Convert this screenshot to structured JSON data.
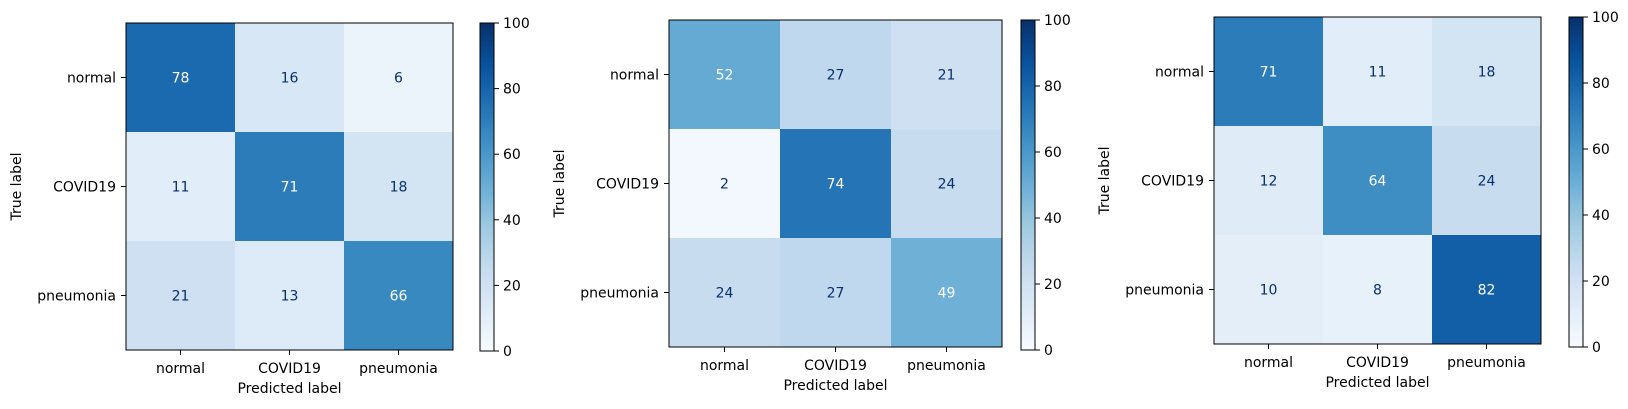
{
  "chart_data": [
    {
      "type": "heatmap",
      "row_categories": [
        "normal",
        "COVID19",
        "pneumonia"
      ],
      "col_categories": [
        "normal",
        "COVID19",
        "pneumonia"
      ],
      "values": [
        [
          78,
          16,
          6
        ],
        [
          11,
          71,
          18
        ],
        [
          21,
          13,
          66
        ]
      ],
      "xlabel": "Predicted label",
      "ylabel": "True label",
      "colorbar": {
        "range": [
          0,
          100
        ],
        "ticks": [
          "0",
          "20",
          "40",
          "60",
          "80",
          "100"
        ],
        "colormap": "Blues"
      }
    },
    {
      "type": "heatmap",
      "row_categories": [
        "normal",
        "COVID19",
        "pneumonia"
      ],
      "col_categories": [
        "normal",
        "COVID19",
        "pneumonia"
      ],
      "values": [
        [
          52,
          27,
          21
        ],
        [
          2,
          74,
          24
        ],
        [
          24,
          27,
          49
        ]
      ],
      "xlabel": "Predicted label",
      "ylabel": "True label",
      "colorbar": {
        "range": [
          0,
          100
        ],
        "ticks": [
          "0",
          "20",
          "40",
          "60",
          "80",
          "100"
        ],
        "colormap": "Blues"
      }
    },
    {
      "type": "heatmap",
      "row_categories": [
        "normal",
        "COVID19",
        "pneumonia"
      ],
      "col_categories": [
        "normal",
        "COVID19",
        "pneumonia"
      ],
      "values": [
        [
          71,
          11,
          18
        ],
        [
          12,
          64,
          24
        ],
        [
          10,
          8,
          82
        ]
      ],
      "xlabel": "Predicted label",
      "ylabel": "True label",
      "colorbar": {
        "range": [
          0,
          100
        ],
        "ticks": [
          "0",
          "20",
          "40",
          "60",
          "80",
          "100"
        ],
        "colormap": "Blues"
      }
    }
  ]
}
